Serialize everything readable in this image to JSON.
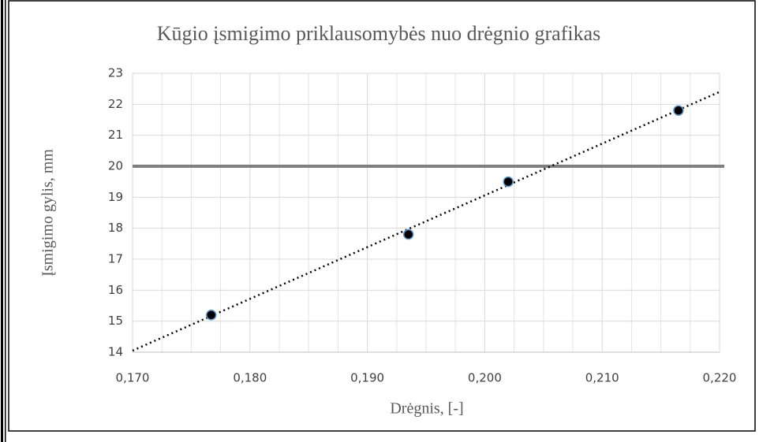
{
  "chart_data": {
    "type": "scatter",
    "title": "Kūgio įsmigimo priklausomybės nuo drėgnio grafikas",
    "x_label": "Drėgnis, [-]",
    "y_label": "Įsmigimo gylis, mm",
    "series": [
      {
        "name": "Įsmigimo gylis",
        "color": "#000000",
        "edge_color": "#5b9bd5",
        "x": [
          0.1767,
          0.1935,
          0.202,
          0.2165
        ],
        "values": [
          15.2,
          17.8,
          19.5,
          21.8
        ]
      }
    ],
    "trendline": {
      "color": "#000000",
      "x": [
        0.17,
        0.22
      ],
      "values": [
        14.05,
        22.4
      ]
    },
    "reference_line": {
      "value": 20,
      "color": "#7f7f7f"
    },
    "xlim": [
      0.17,
      0.22
    ],
    "ylim": [
      14,
      23
    ],
    "xticks": [
      {
        "value": 0.17,
        "label": "0,170"
      },
      {
        "value": 0.18,
        "label": "0,180"
      },
      {
        "value": 0.19,
        "label": "0,190"
      },
      {
        "value": 0.2,
        "label": "0,200"
      },
      {
        "value": 0.21,
        "label": "0,210"
      },
      {
        "value": 0.22,
        "label": "0,220"
      }
    ],
    "yticks": [
      14,
      15,
      16,
      17,
      18,
      19,
      20,
      21,
      22,
      23
    ],
    "grid": true
  }
}
